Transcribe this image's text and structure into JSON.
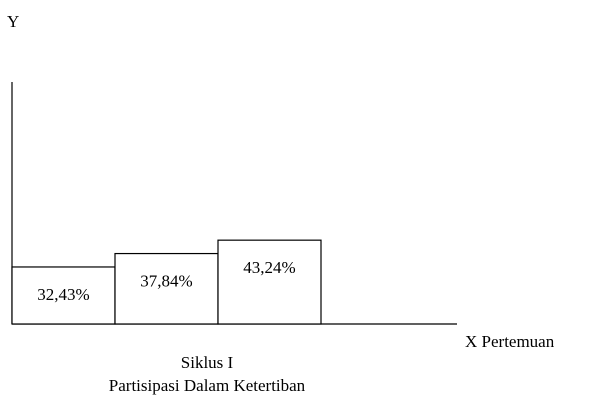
{
  "chart_data": {
    "type": "bar",
    "values": [
      "32,43%",
      "37,84%",
      "43,24%"
    ],
    "numeric_values": [
      32.43,
      37.84,
      43.24
    ],
    "ylabel": "Y",
    "xlabel": "X Pertemuan",
    "caption_line1": "Siklus I",
    "caption_line2": "Partisipasi Dalam Ketertiban",
    "grid": false,
    "legend": "none"
  }
}
